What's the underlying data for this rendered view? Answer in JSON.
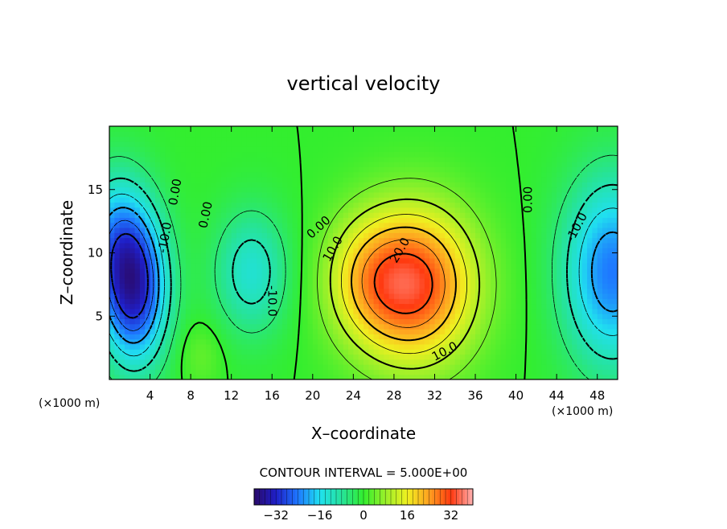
{
  "chart_data": {
    "type": "heatmap",
    "title": "vertical velocity",
    "xlabel": "X–coordinate",
    "ylabel": "Z–coordinate",
    "x_unit": "(×1000 m)",
    "x_unit_right": "(×1000 m)",
    "xlim": [
      0,
      50
    ],
    "ylim": [
      0,
      20
    ],
    "x_ticks": [
      4,
      8,
      12,
      16,
      20,
      24,
      28,
      32,
      36,
      40,
      44,
      48
    ],
    "x_tick_labels": [
      "4",
      "8",
      "12",
      "16",
      "20",
      "24",
      "28",
      "32",
      "36",
      "40",
      "44",
      "48"
    ],
    "y_ticks": [
      5,
      10,
      15
    ],
    "y_tick_labels": [
      "5",
      "10",
      "15"
    ],
    "contour_interval_text": "CONTOUR INTERVAL = 5.000E+00",
    "contour_interval": 5,
    "colorbar": {
      "range": [
        -40,
        40
      ],
      "ticks": [
        -32,
        -16,
        0,
        16,
        32
      ],
      "tick_labels": [
        "−32",
        "−16",
        "0",
        "16",
        "32"
      ],
      "colors": [
        "#2a0a6a",
        "#1f1fc8",
        "#1e78ff",
        "#20e0f0",
        "#26e39b",
        "#33ee2e",
        "#9af02a",
        "#f0f020",
        "#ffa020",
        "#ff3a10",
        "#ffb0b0"
      ]
    },
    "features": [
      {
        "kind": "max",
        "x": 30,
        "z": 7.5,
        "value": 30
      },
      {
        "kind": "min",
        "x": 2,
        "z": 7,
        "value": -30
      },
      {
        "kind": "min",
        "x": 49,
        "z": 9,
        "value": -20
      },
      {
        "kind": "min",
        "x": 13,
        "z": 8,
        "value": -12
      },
      {
        "kind": "max",
        "x": 9,
        "z": 2,
        "value": 4
      }
    ],
    "contour_labels": [
      {
        "text": "0.00",
        "x": 6.5,
        "z": 14.8,
        "rot": -80
      },
      {
        "text": "0.00",
        "x": 9.5,
        "z": 13.0,
        "rot": -78
      },
      {
        "text": "-10.0",
        "x": 5.5,
        "z": 11.2,
        "rot": -80
      },
      {
        "text": "0.00",
        "x": 20.6,
        "z": 12.0,
        "rot": -42
      },
      {
        "text": "10.0",
        "x": 22.0,
        "z": 10.3,
        "rot": -60
      },
      {
        "text": "20.0",
        "x": 28.6,
        "z": 10.2,
        "rot": -60
      },
      {
        "text": "-10.0",
        "x": 16.0,
        "z": 6.2,
        "rot": 90
      },
      {
        "text": "10.0",
        "x": 33.0,
        "z": 2.2,
        "rot": -28
      },
      {
        "text": "0.00",
        "x": 41.2,
        "z": 14.2,
        "rot": -90
      },
      {
        "text": "-10.0",
        "x": 46.0,
        "z": 12.0,
        "rot": -62
      }
    ]
  }
}
